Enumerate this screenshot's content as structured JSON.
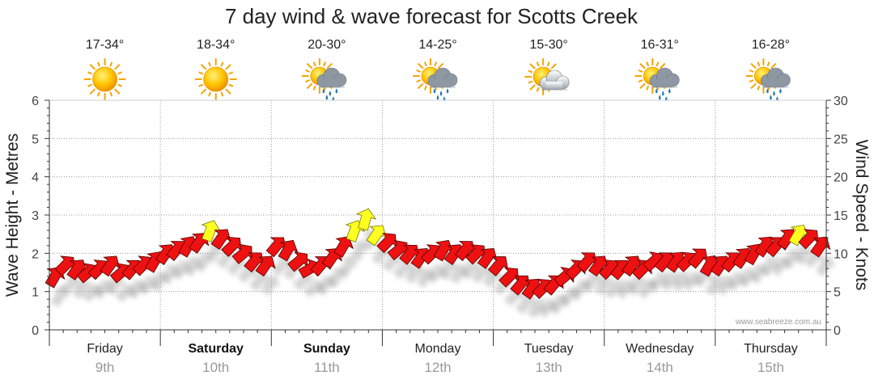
{
  "chart_data": {
    "type": "line",
    "title": "7 day wind & wave forecast for Scotts Creek",
    "ylabel_left": "Wave Height - Metres",
    "ylabel_right": "Wind Speed - Knots",
    "ylim_left": [
      0,
      6
    ],
    "ylim_right": [
      0,
      30
    ],
    "yticks_left": [
      "0",
      "1",
      "2",
      "3",
      "4",
      "5",
      "6"
    ],
    "yticks_right": [
      "0",
      "5",
      "10",
      "15",
      "20",
      "25",
      "30"
    ],
    "grid": true,
    "credit": "www.seabreeze.com.au",
    "days": [
      {
        "day": "Friday",
        "date": "9th",
        "bold": false,
        "temp": "17-34°",
        "weather": "sunny"
      },
      {
        "day": "Saturday",
        "date": "10th",
        "bold": true,
        "temp": "18-34°",
        "weather": "sunny"
      },
      {
        "day": "Sunday",
        "date": "11th",
        "bold": true,
        "temp": "20-30°",
        "weather": "sun-showers"
      },
      {
        "day": "Monday",
        "date": "12th",
        "bold": false,
        "temp": "14-25°",
        "weather": "sun-showers"
      },
      {
        "day": "Tuesday",
        "date": "13th",
        "bold": false,
        "temp": "15-30°",
        "weather": "partly-cloudy"
      },
      {
        "day": "Wednesday",
        "date": "14th",
        "bold": false,
        "temp": "16-31°",
        "weather": "sun-showers"
      },
      {
        "day": "Thursday",
        "date": "15th",
        "bold": false,
        "temp": "16-28°",
        "weather": "sun-showers"
      }
    ],
    "series": [
      {
        "name": "",
        "unit": "knots",
        "color_normal": "#ee1111",
        "color_strong": "#ffff22",
        "points": [
          [
            0.0,
            7.0,
            210
          ],
          [
            0.1,
            8.5,
            225
          ],
          [
            0.2,
            8.0,
            215
          ],
          [
            0.3,
            7.5,
            230
          ],
          [
            0.4,
            8.0,
            225
          ],
          [
            0.5,
            8.5,
            215
          ],
          [
            0.6,
            7.5,
            230
          ],
          [
            0.7,
            8.0,
            220
          ],
          [
            0.8,
            8.5,
            225
          ],
          [
            0.9,
            9.0,
            210
          ],
          [
            1.0,
            10.0,
            215
          ],
          [
            1.1,
            10.5,
            220
          ],
          [
            1.2,
            11.0,
            210
          ],
          [
            1.3,
            11.5,
            215
          ],
          [
            1.4,
            13.0,
            200
          ],
          [
            1.5,
            12.0,
            215
          ],
          [
            1.6,
            11.0,
            225
          ],
          [
            1.7,
            10.0,
            230
          ],
          [
            1.8,
            9.0,
            220
          ],
          [
            1.9,
            8.5,
            215
          ],
          [
            2.0,
            11.0,
            220
          ],
          [
            2.1,
            10.5,
            210
          ],
          [
            2.2,
            9.0,
            230
          ],
          [
            2.3,
            8.0,
            240
          ],
          [
            2.4,
            8.5,
            220
          ],
          [
            2.5,
            9.5,
            215
          ],
          [
            2.6,
            11.0,
            210
          ],
          [
            2.7,
            13.0,
            200
          ],
          [
            2.8,
            14.5,
            195
          ],
          [
            2.9,
            12.5,
            215
          ],
          [
            3.0,
            11.5,
            225
          ],
          [
            3.1,
            10.5,
            230
          ],
          [
            3.2,
            10.0,
            220
          ],
          [
            3.3,
            9.5,
            215
          ],
          [
            3.4,
            10.0,
            225
          ],
          [
            3.5,
            10.5,
            210
          ],
          [
            3.6,
            10.0,
            215
          ],
          [
            3.7,
            10.5,
            220
          ],
          [
            3.8,
            10.0,
            225
          ],
          [
            3.9,
            9.5,
            215
          ],
          [
            4.0,
            8.5,
            220
          ],
          [
            4.1,
            7.0,
            225
          ],
          [
            4.2,
            6.0,
            220
          ],
          [
            4.3,
            5.5,
            215
          ],
          [
            4.4,
            5.5,
            225
          ],
          [
            4.5,
            6.0,
            220
          ],
          [
            4.6,
            7.0,
            230
          ],
          [
            4.7,
            8.0,
            225
          ],
          [
            4.8,
            9.0,
            220
          ],
          [
            4.9,
            8.5,
            215
          ],
          [
            5.0,
            8.0,
            225
          ],
          [
            5.1,
            8.0,
            220
          ],
          [
            5.2,
            8.5,
            215
          ],
          [
            5.3,
            8.0,
            225
          ],
          [
            5.4,
            9.0,
            230
          ],
          [
            5.5,
            9.0,
            220
          ],
          [
            5.6,
            9.0,
            215
          ],
          [
            5.7,
            9.0,
            225
          ],
          [
            5.8,
            9.5,
            220
          ],
          [
            5.9,
            8.5,
            210
          ],
          [
            6.0,
            8.5,
            215
          ],
          [
            6.1,
            9.0,
            220
          ],
          [
            6.2,
            9.5,
            215
          ],
          [
            6.3,
            10.0,
            210
          ],
          [
            6.4,
            11.0,
            215
          ],
          [
            6.5,
            11.0,
            220
          ],
          [
            6.6,
            12.0,
            215
          ],
          [
            6.7,
            12.5,
            210
          ],
          [
            6.8,
            12.0,
            225
          ],
          [
            6.9,
            11.0,
            215
          ]
        ]
      }
    ]
  }
}
